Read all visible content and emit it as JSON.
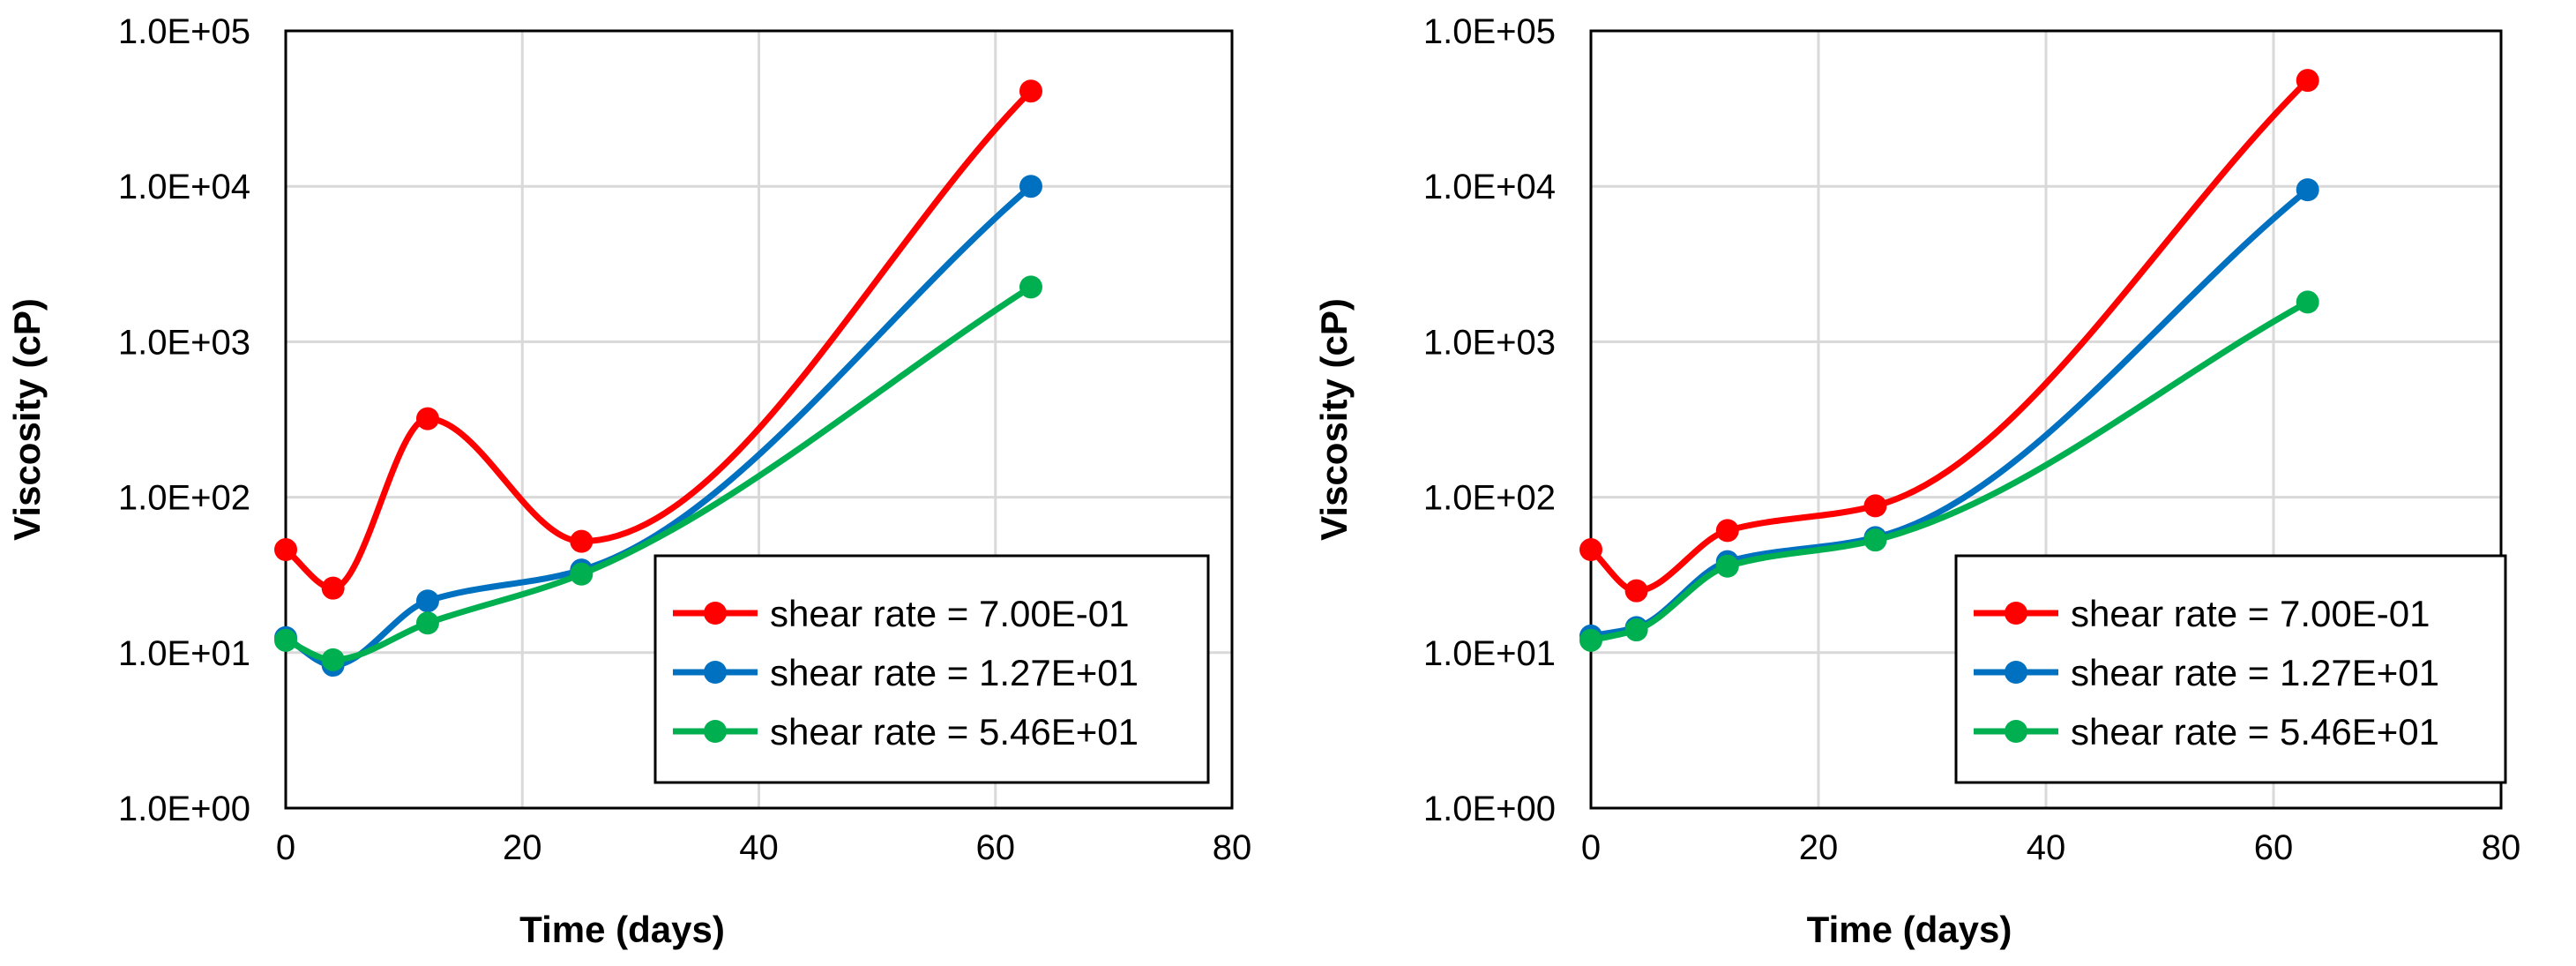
{
  "chart_data": [
    {
      "type": "line",
      "title": "",
      "xlabel": "Time (days)",
      "ylabel": "Viscosity (cP)",
      "xlim": [
        0,
        80
      ],
      "ylim": [
        1,
        100000
      ],
      "yscale": "log",
      "x_ticks": [
        "0",
        "20",
        "40",
        "60",
        "80"
      ],
      "y_ticks": [
        "1.0E+00",
        "1.0E+01",
        "1.0E+02",
        "1.0E+03",
        "1.0E+04",
        "1.0E+05"
      ],
      "grid": true,
      "legend": "bottom-right",
      "x": [
        0,
        4,
        12,
        25,
        63
      ],
      "series": [
        {
          "name": "shear rate = 7.00E-01",
          "color": "#ff0000",
          "values": [
            46,
            26,
            320,
            52,
            41000
          ]
        },
        {
          "name": "shear rate = 1.27E+01",
          "color": "#0070c0",
          "values": [
            12.5,
            8.3,
            21.5,
            34,
            10000
          ]
        },
        {
          "name": "shear rate = 5.46E+01",
          "color": "#00b050",
          "values": [
            12,
            9,
            15.5,
            32,
            2250
          ]
        }
      ]
    },
    {
      "type": "line",
      "title": "",
      "xlabel": "Time (days)",
      "ylabel": "Viscosity (cP)",
      "xlim": [
        0,
        80
      ],
      "ylim": [
        1,
        100000
      ],
      "yscale": "log",
      "x_ticks": [
        "0",
        "20",
        "40",
        "60",
        "80"
      ],
      "y_ticks": [
        "1.0E+00",
        "1.0E+01",
        "1.0E+02",
        "1.0E+03",
        "1.0E+04",
        "1.0E+05"
      ],
      "grid": true,
      "legend": "bottom-right",
      "x": [
        0,
        4,
        12,
        25,
        63
      ],
      "series": [
        {
          "name": "shear rate = 7.00E-01",
          "color": "#ff0000",
          "values": [
            46,
            25,
            61,
            88,
            48000
          ]
        },
        {
          "name": "shear rate = 1.27E+01",
          "color": "#0070c0",
          "values": [
            12.8,
            14.5,
            38.5,
            55,
            9500
          ]
        },
        {
          "name": "shear rate = 5.46E+01",
          "color": "#00b050",
          "values": [
            12,
            14,
            36,
            53,
            1800
          ]
        }
      ]
    }
  ]
}
